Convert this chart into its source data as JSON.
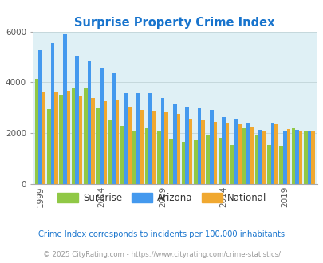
{
  "title": "Surprise Property Crime Index",
  "title_color": "#1874CD",
  "years": [
    1999,
    2000,
    2001,
    2002,
    2003,
    2004,
    2005,
    2006,
    2007,
    2008,
    2009,
    2010,
    2011,
    2012,
    2013,
    2014,
    2015,
    2016,
    2017,
    2018,
    2019,
    2020,
    2021
  ],
  "surprise": [
    4150,
    2950,
    3500,
    3800,
    3800,
    2970,
    2540,
    2280,
    2100,
    2200,
    2090,
    1780,
    1650,
    1720,
    1920,
    1810,
    1530,
    2190,
    1900,
    1550,
    1490,
    2190,
    2090
  ],
  "arizona": [
    5280,
    5540,
    5900,
    5050,
    4820,
    4580,
    4380,
    3560,
    3560,
    3570,
    3380,
    3150,
    3050,
    3000,
    2920,
    2640,
    2560,
    2420,
    2120,
    2420,
    2090,
    2130,
    2080
  ],
  "national": [
    3650,
    3650,
    3680,
    3490,
    3370,
    3250,
    3280,
    3030,
    2930,
    2870,
    2820,
    2760,
    2570,
    2530,
    2450,
    2400,
    2380,
    2250,
    2100,
    2340,
    2150,
    2110,
    2100
  ],
  "surprise_color": "#90C846",
  "arizona_color": "#4499EE",
  "national_color": "#F0A830",
  "bg_color": "#DFF0F5",
  "ylim": [
    0,
    6000
  ],
  "yticks": [
    0,
    2000,
    4000,
    6000
  ],
  "xtick_years": [
    1999,
    2004,
    2009,
    2014,
    2019
  ],
  "footnote1": "Crime Index corresponds to incidents per 100,000 inhabitants",
  "footnote2": "© 2025 CityRating.com - https://www.cityrating.com/crime-statistics/",
  "footnote1_color": "#1874CD",
  "footnote2_color": "#999999",
  "legend_labels": [
    "Surprise",
    "Arizona",
    "National"
  ]
}
